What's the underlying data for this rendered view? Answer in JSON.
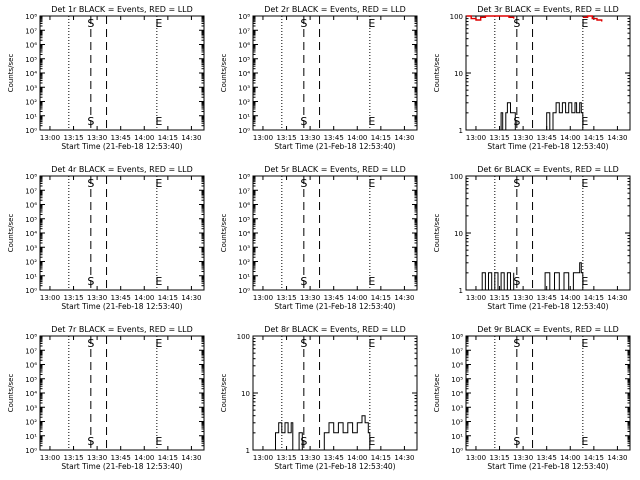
{
  "x_tick_labels": [
    "13:00",
    "13:15",
    "13:30",
    "13:45",
    "14:00",
    "14:15",
    "14:30"
  ],
  "xlabel": "Start Time (21-Feb-18 12:53:40)",
  "ylabel": "Counts/sec",
  "colors": {
    "events": "#000000",
    "lld": "#dd0000"
  },
  "chart_data": [
    {
      "type": "line",
      "title": "Det 1r BLACK = Events, RED = LLD",
      "y_scale": "log",
      "ylim": [
        1,
        100000000
      ],
      "y_tick_labels": [
        "10⁰",
        "10¹",
        "10²",
        "10³",
        "10⁴",
        "10⁵",
        "10⁶",
        "10⁷",
        "10⁸"
      ],
      "markers": [
        {
          "label": "S",
          "x": "13:26"
        },
        {
          "label": "E",
          "x": "14:08"
        }
      ],
      "series": []
    },
    {
      "type": "line",
      "title": "Det 2r BLACK = Events, RED = LLD",
      "y_scale": "log",
      "ylim": [
        1,
        100000000
      ],
      "y_tick_labels": [
        "10⁰",
        "10¹",
        "10²",
        "10³",
        "10⁴",
        "10⁵",
        "10⁶",
        "10⁷",
        "10⁸"
      ],
      "markers": [
        {
          "label": "S",
          "x": "13:26"
        },
        {
          "label": "E",
          "x": "14:08"
        }
      ],
      "series": []
    },
    {
      "type": "line",
      "title": "Det 3r BLACK = Events, RED = LLD",
      "y_scale": "log",
      "ylim": [
        1,
        100
      ],
      "y_tick_labels": [
        "1",
        "10",
        "100"
      ],
      "markers": [
        {
          "label": "S",
          "x": "13:26"
        },
        {
          "label": "E",
          "x": "14:08"
        }
      ],
      "series": [
        {
          "color": "events",
          "x": [
            "13:15",
            "13:16",
            "13:17",
            "13:19",
            "13:20",
            "13:22",
            "13:23",
            "13:24",
            "13:25"
          ],
          "y": [
            1,
            2,
            1,
            2,
            3,
            2,
            2,
            2,
            1
          ]
        },
        {
          "color": "events",
          "x": [
            "13:41",
            "13:45",
            "13:47",
            "13:49",
            "13:51",
            "13:53",
            "13:55",
            "13:57",
            "13:59",
            "14:01",
            "14:03",
            "14:04",
            "14:06",
            "14:07",
            "14:08"
          ],
          "y": [
            1,
            2,
            1,
            2,
            3,
            2,
            3,
            2,
            3,
            2,
            3,
            2,
            3,
            2,
            1
          ]
        },
        {
          "color": "lld",
          "x": [
            "12:54",
            "12:57",
            "13:00",
            "13:03",
            "13:06",
            "13:09",
            "13:12",
            "13:15",
            "13:18",
            "13:21",
            "13:24"
          ],
          "y": [
            100,
            90,
            85,
            95,
            100,
            100,
            100,
            100,
            100,
            95,
            90
          ]
        },
        {
          "color": "lld",
          "x": [
            "14:08",
            "14:11",
            "14:14",
            "14:17",
            "14:20"
          ],
          "y": [
            95,
            100,
            90,
            85,
            80
          ]
        }
      ]
    },
    {
      "type": "line",
      "title": "Det 4r BLACK = Events, RED = LLD",
      "y_scale": "log",
      "ylim": [
        1,
        100000000
      ],
      "y_tick_labels": [
        "10⁰",
        "10¹",
        "10²",
        "10³",
        "10⁴",
        "10⁵",
        "10⁶",
        "10⁷",
        "10⁸"
      ],
      "markers": [
        {
          "label": "S",
          "x": "13:26"
        },
        {
          "label": "E",
          "x": "14:08"
        }
      ],
      "series": []
    },
    {
      "type": "line",
      "title": "Det 5r BLACK = Events, RED = LLD",
      "y_scale": "log",
      "ylim": [
        1,
        100000000
      ],
      "y_tick_labels": [
        "10⁰",
        "10¹",
        "10²",
        "10³",
        "10⁴",
        "10⁵",
        "10⁶",
        "10⁷",
        "10⁸"
      ],
      "markers": [
        {
          "label": "S",
          "x": "13:26"
        },
        {
          "label": "E",
          "x": "14:08"
        }
      ],
      "series": []
    },
    {
      "type": "line",
      "title": "Det 6r BLACK = Events, RED = LLD",
      "y_scale": "log",
      "ylim": [
        1,
        100
      ],
      "y_tick_labels": [
        "1",
        "10",
        "100"
      ],
      "markers": [
        {
          "label": "S",
          "x": "13:26"
        },
        {
          "label": "E",
          "x": "14:08"
        }
      ],
      "series": [
        {
          "color": "events",
          "x": [
            "13:02",
            "13:04",
            "13:06",
            "13:08",
            "13:10",
            "13:12",
            "13:14",
            "13:16",
            "13:18",
            "13:20",
            "13:22",
            "13:24"
          ],
          "y": [
            1,
            2,
            1,
            2,
            1,
            2,
            1,
            2,
            1,
            2,
            1,
            2
          ]
        },
        {
          "color": "events",
          "x": [
            "13:41",
            "13:44",
            "13:47",
            "13:50",
            "13:53",
            "13:56",
            "13:59",
            "14:02",
            "14:05",
            "14:06",
            "14:07",
            "14:08"
          ],
          "y": [
            1,
            2,
            1,
            2,
            1,
            2,
            1,
            2,
            2,
            3,
            2,
            1
          ]
        }
      ]
    },
    {
      "type": "line",
      "title": "Det 7r BLACK = Events, RED = LLD",
      "y_scale": "log",
      "ylim": [
        1,
        100000000
      ],
      "y_tick_labels": [
        "10⁰",
        "10¹",
        "10²",
        "10³",
        "10⁴",
        "10⁵",
        "10⁶",
        "10⁷",
        "10⁸"
      ],
      "markers": [
        {
          "label": "S",
          "x": "13:26"
        },
        {
          "label": "E",
          "x": "14:08"
        }
      ],
      "series": []
    },
    {
      "type": "line",
      "title": "Det 8r BLACK = Events, RED = LLD",
      "y_scale": "log",
      "ylim": [
        1,
        100
      ],
      "y_tick_labels": [
        "1",
        "10",
        "100"
      ],
      "markers": [
        {
          "label": "S",
          "x": "13:26"
        },
        {
          "label": "E",
          "x": "14:08"
        }
      ],
      "series": [
        {
          "color": "events",
          "x": [
            "13:07",
            "13:08",
            "13:10",
            "13:12",
            "13:14",
            "13:16",
            "13:18",
            "13:19"
          ],
          "y": [
            1,
            2,
            3,
            2,
            3,
            2,
            3,
            1
          ]
        },
        {
          "color": "events",
          "x": [
            "13:22",
            "13:23",
            "13:24",
            "13:25"
          ],
          "y": [
            1,
            2,
            2,
            1
          ]
        },
        {
          "color": "events",
          "x": [
            "13:38",
            "13:39",
            "13:42",
            "13:45",
            "13:48",
            "13:51",
            "13:54",
            "13:57",
            "14:00",
            "14:03",
            "14:05",
            "14:07",
            "14:08"
          ],
          "y": [
            1,
            2,
            3,
            2,
            3,
            2,
            3,
            2,
            3,
            4,
            3,
            2,
            1
          ]
        }
      ]
    },
    {
      "type": "line",
      "title": "Det 9r BLACK = Events, RED = LLD",
      "y_scale": "log",
      "ylim": [
        1,
        100000000
      ],
      "y_tick_labels": [
        "10⁰",
        "10¹",
        "10²",
        "10³",
        "10⁴",
        "10⁵",
        "10⁶",
        "10⁷",
        "10⁸"
      ],
      "markers": [
        {
          "label": "S",
          "x": "13:26"
        },
        {
          "label": "E",
          "x": "14:08"
        }
      ],
      "series": []
    }
  ]
}
